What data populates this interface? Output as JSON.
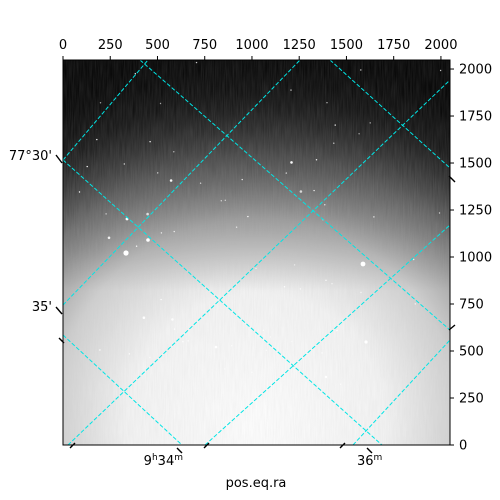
{
  "chart_data": {
    "type": "image",
    "title": "",
    "xlabel": "pos.eq.ra",
    "ylabel": "",
    "pixel_axes": {
      "x_ticks": [
        "0",
        "250",
        "500",
        "750",
        "1000",
        "1250",
        "1500",
        "1750",
        "2000"
      ],
      "x_tick_values": [
        0,
        250,
        500,
        750,
        1000,
        1250,
        1500,
        1750,
        2000
      ],
      "y_ticks": [
        "0",
        "250",
        "500",
        "750",
        "1000",
        "1250",
        "1500",
        "1750",
        "2000"
      ],
      "y_tick_values": [
        0,
        250,
        500,
        750,
        1000,
        1250,
        1500,
        1750,
        2000
      ],
      "xlim": [
        0,
        2048
      ],
      "ylim": [
        0,
        2048
      ]
    },
    "world_axes": {
      "ra_ticks": [
        {
          "hours": "9",
          "minutes": "34",
          "unit_h": "h",
          "unit_m": "m"
        },
        {
          "hours": "",
          "minutes": "36",
          "unit_h": "",
          "unit_m": "m"
        }
      ],
      "dec_ticks": [
        "77°30'",
        "35'"
      ]
    },
    "grid": true,
    "grid_color": "#00e5e5",
    "colormap": "gray"
  }
}
